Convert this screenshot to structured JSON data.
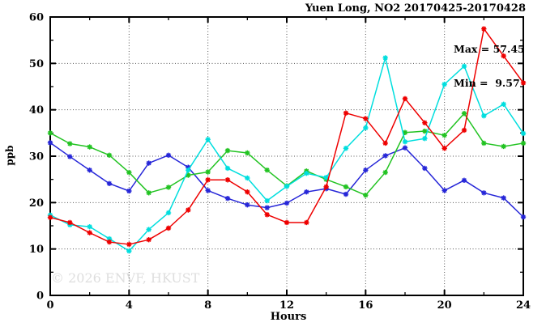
{
  "chart_data": {
    "type": "line",
    "title": "Yuen Long, NO2 20170425-20170428",
    "xlabel": "Hours",
    "ylabel": "ppb",
    "xlim": [
      0,
      24
    ],
    "ylim": [
      0,
      60
    ],
    "x_tick_values": [
      0,
      4,
      8,
      12,
      16,
      20,
      24
    ],
    "x_tick_labels": [
      "0",
      "4",
      "8",
      "12",
      "16",
      "20",
      "24"
    ],
    "y_tick_values": [
      0,
      10,
      20,
      30,
      40,
      50,
      60
    ],
    "y_tick_labels": [
      "0",
      "10",
      "20",
      "30",
      "40",
      "50",
      "60"
    ],
    "x_minor_tick_values": [
      2,
      6,
      10,
      14,
      18,
      22
    ],
    "y_minor_tick_values": [
      5,
      15,
      25,
      35,
      45,
      55
    ],
    "grid": true,
    "legend": "none",
    "x": [
      0,
      1,
      2,
      3,
      4,
      5,
      6,
      7,
      8,
      9,
      10,
      11,
      12,
      13,
      14,
      15,
      16,
      17,
      18,
      19,
      20,
      21,
      22,
      23,
      24
    ],
    "series": [
      {
        "name": "blue-line",
        "color": "#2626d8",
        "values": [
          32.9,
          29.9,
          27.0,
          24.1,
          22.5,
          28.5,
          30.2,
          27.6,
          22.6,
          20.9,
          19.5,
          18.9,
          19.9,
          22.3,
          23.0,
          21.8,
          27.0,
          30.1,
          31.8,
          27.4,
          22.6,
          24.8,
          22.1,
          21.0,
          16.9
        ]
      },
      {
        "name": "green-line",
        "color": "#22c322",
        "values": [
          35.0,
          32.7,
          32.0,
          30.2,
          26.5,
          22.1,
          23.3,
          25.9,
          26.6,
          31.2,
          30.7,
          27.0,
          23.6,
          26.8,
          25.0,
          23.4,
          21.6,
          26.5,
          35.1,
          35.4,
          34.5,
          39.2,
          32.8,
          32.1,
          32.8
        ]
      },
      {
        "name": "cyan-line",
        "color": "#00dede",
        "values": [
          17.3,
          15.2,
          14.8,
          12.2,
          9.57,
          14.2,
          17.8,
          27.0,
          33.6,
          27.4,
          25.3,
          20.4,
          23.5,
          26.3,
          25.4,
          31.7,
          36.1,
          51.2,
          33.1,
          33.8,
          45.5,
          49.4,
          38.7,
          41.2,
          34.9
        ]
      },
      {
        "name": "red-line",
        "color": "#ee0000",
        "values": [
          16.8,
          15.7,
          13.5,
          11.5,
          11.0,
          12.0,
          14.5,
          18.4,
          24.9,
          24.9,
          22.3,
          17.4,
          15.7,
          15.7,
          23.4,
          39.3,
          38.1,
          32.8,
          42.4,
          37.2,
          31.7,
          35.6,
          57.45,
          51.6,
          45.8
        ]
      }
    ],
    "annotations": {
      "max": "Max = 57.45",
      "min": "Min =  9.57"
    },
    "watermark": "© 2026 ENVF, HKUST",
    "max_value": 57.45,
    "min_value": 9.57
  }
}
